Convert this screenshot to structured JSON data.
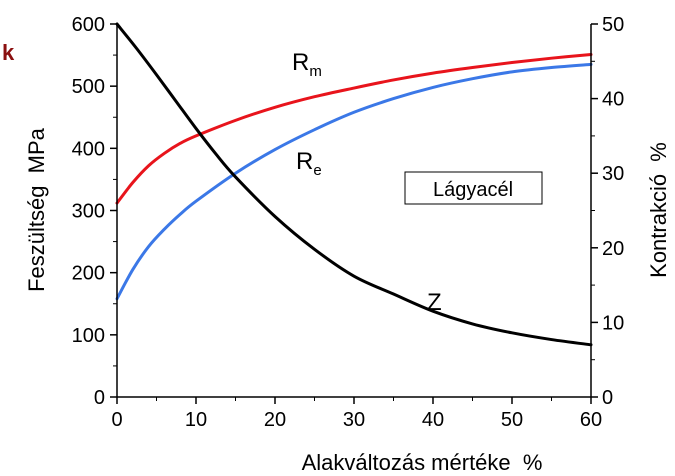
{
  "corner_letter": "k",
  "chart_data": {
    "type": "line",
    "xlabel": "Alakváltozás mértéke  %",
    "ylabel": "Feszültség  MPa",
    "y2label": "Kontrakció  %",
    "xlim": [
      0,
      60
    ],
    "ylim": [
      0,
      600
    ],
    "y2lim": [
      0,
      50
    ],
    "x_ticks": [
      0,
      10,
      20,
      30,
      40,
      50,
      60
    ],
    "y_ticks": [
      0,
      100,
      200,
      300,
      400,
      500,
      600
    ],
    "y2_ticks": [
      0,
      10,
      20,
      30,
      40,
      50
    ],
    "annotation_box": "Lágyacél",
    "grid": false,
    "series": [
      {
        "name": "R",
        "subscript": "m",
        "axis": "left",
        "color": "#e8141c",
        "x": [
          0,
          2,
          4,
          6,
          8,
          10,
          15,
          20,
          25,
          30,
          35,
          40,
          45,
          50,
          55,
          60
        ],
        "y": [
          312,
          345,
          372,
          392,
          408,
          420,
          445,
          466,
          483,
          497,
          510,
          521,
          530,
          538,
          545,
          551
        ]
      },
      {
        "name": "R",
        "subscript": "e",
        "axis": "left",
        "color": "#3b78e7",
        "x": [
          0,
          2,
          4,
          6,
          8,
          10,
          15,
          20,
          25,
          30,
          35,
          40,
          45,
          50,
          55,
          60
        ],
        "y": [
          158,
          205,
          242,
          270,
          294,
          315,
          360,
          398,
          430,
          458,
          480,
          498,
          512,
          523,
          530,
          535
        ]
      },
      {
        "name": "Z",
        "axis": "right",
        "color": "#000000",
        "x": [
          0,
          2.5,
          5,
          7.5,
          10,
          12.5,
          15,
          20,
          25,
          30,
          35,
          40,
          45,
          50,
          55,
          60
        ],
        "y": [
          50,
          46.7,
          43.2,
          39.6,
          36,
          32.6,
          29.5,
          24.2,
          19.8,
          16.2,
          13.8,
          11.5,
          9.8,
          8.6,
          7.7,
          7.0
        ]
      }
    ]
  }
}
